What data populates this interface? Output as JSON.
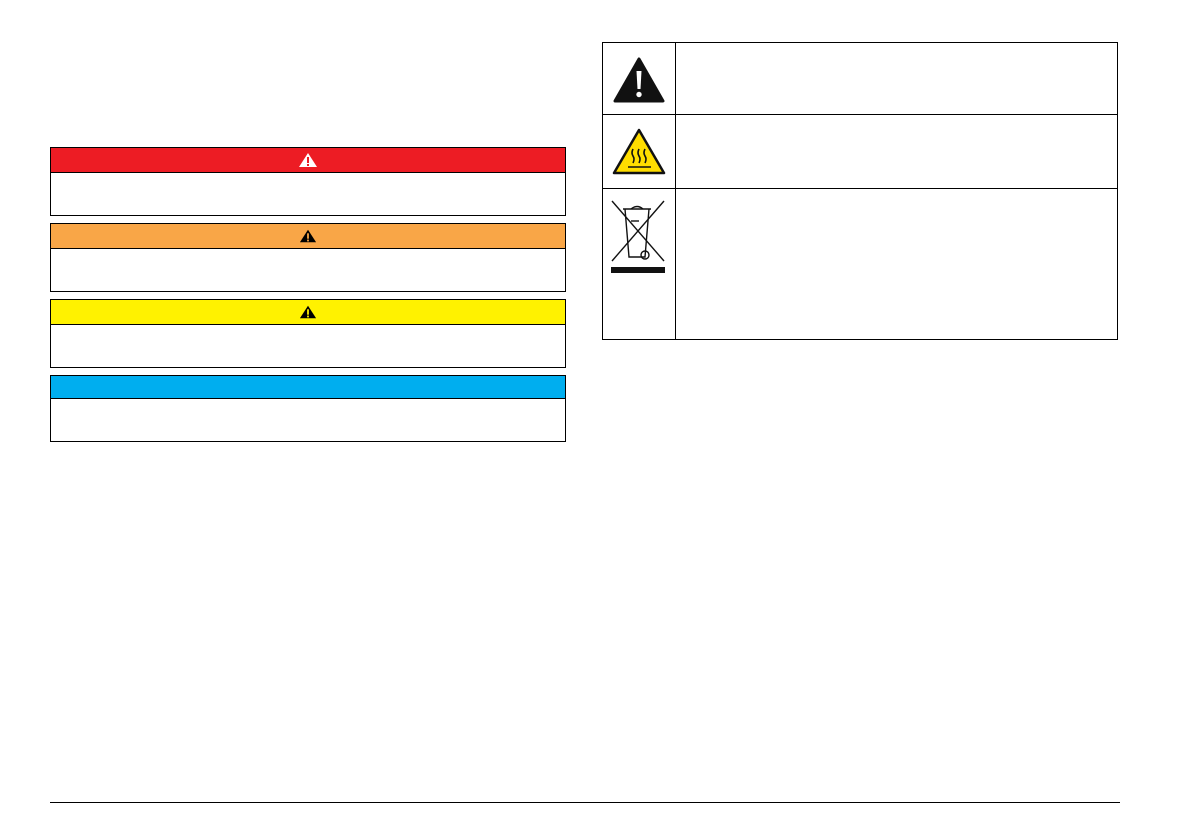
{
  "notices": [
    {
      "level": "danger",
      "color": "#ed1c24",
      "icon": "warning-triangle-white-icon"
    },
    {
      "level": "warning",
      "color": "#f9a647",
      "icon": "warning-triangle-black-icon"
    },
    {
      "level": "caution",
      "color": "#fff200",
      "icon": "warning-triangle-black-icon"
    },
    {
      "level": "notice",
      "color": "#00aeef",
      "icon": null
    }
  ],
  "symbol_table": {
    "rows": [
      {
        "icon": "general-warning-icon"
      },
      {
        "icon": "hot-surface-icon",
        "color": "#ffdd00"
      },
      {
        "icon": "weee-crossed-bin-icon"
      }
    ]
  }
}
